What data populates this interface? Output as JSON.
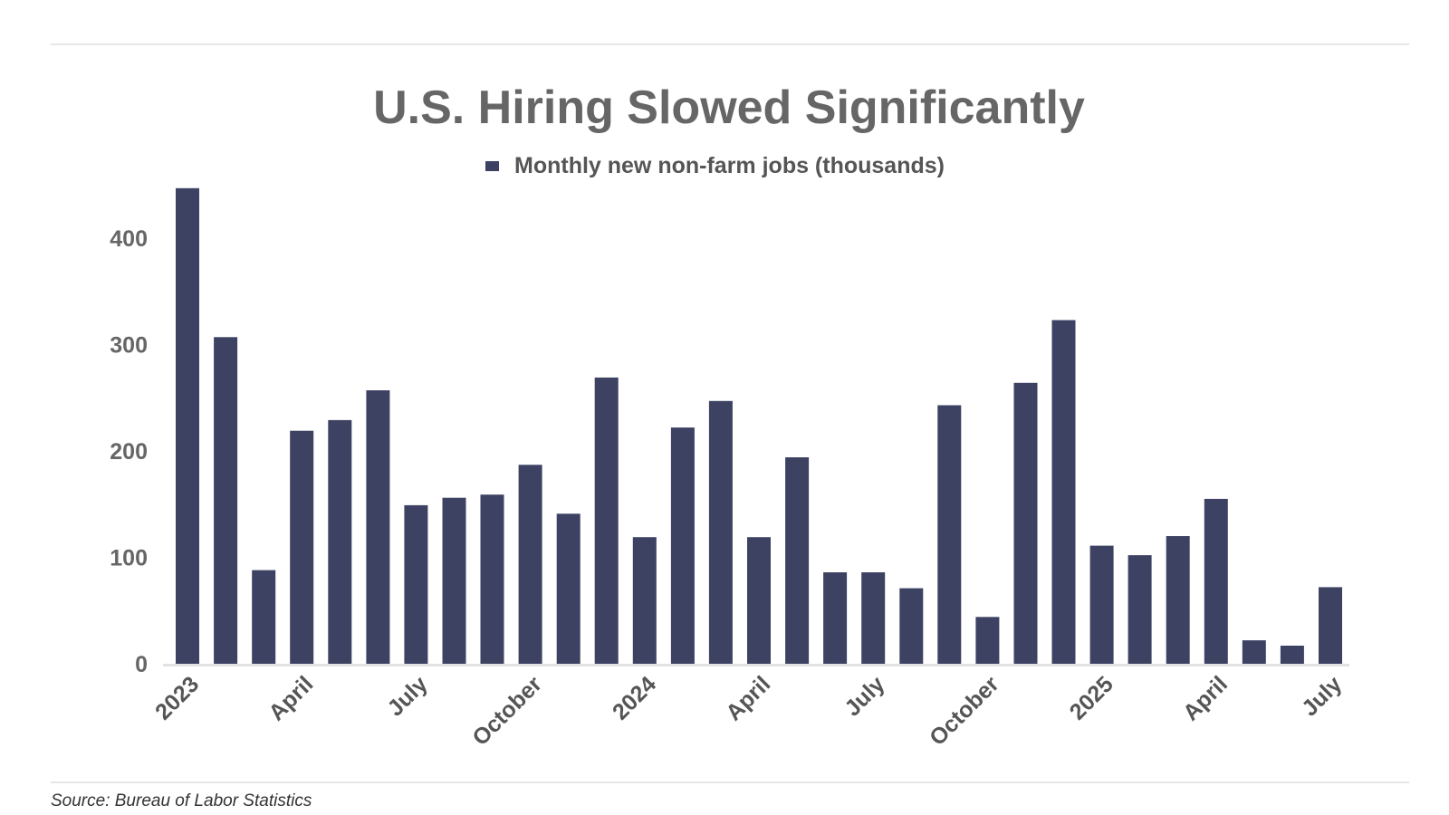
{
  "chart_data": {
    "type": "bar",
    "title": "U.S. Hiring Slowed Significantly",
    "xlabel": "",
    "ylabel": "",
    "ylim": [
      0,
      450
    ],
    "yticks": [
      0,
      100,
      200,
      300,
      400
    ],
    "grid": false,
    "legend": {
      "placement": "top-center"
    },
    "categories": [
      "2023-01",
      "2023-02",
      "2023-03",
      "2023-04",
      "2023-05",
      "2023-06",
      "2023-07",
      "2023-08",
      "2023-09",
      "2023-10",
      "2023-11",
      "2023-12",
      "2024-01",
      "2024-02",
      "2024-03",
      "2024-04",
      "2024-05",
      "2024-06",
      "2024-07",
      "2024-08",
      "2024-09",
      "2024-10",
      "2024-11",
      "2024-12",
      "2025-01",
      "2025-02",
      "2025-03",
      "2025-04",
      "2025-05",
      "2025-06",
      "2025-07"
    ],
    "xtick_labels": [
      {
        "index": 0,
        "label": "2023"
      },
      {
        "index": 3,
        "label": "April"
      },
      {
        "index": 6,
        "label": "July"
      },
      {
        "index": 9,
        "label": "October"
      },
      {
        "index": 12,
        "label": "2024"
      },
      {
        "index": 15,
        "label": "April"
      },
      {
        "index": 18,
        "label": "July"
      },
      {
        "index": 21,
        "label": "October"
      },
      {
        "index": 24,
        "label": "2025"
      },
      {
        "index": 27,
        "label": "April"
      },
      {
        "index": 30,
        "label": "July"
      }
    ],
    "series": [
      {
        "name": "Monthly new non-farm jobs (thousands)",
        "color": "#3d4263",
        "values": [
          447,
          307,
          88,
          219,
          229,
          257,
          149,
          156,
          159,
          187,
          141,
          269,
          119,
          222,
          247,
          119,
          194,
          86,
          86,
          71,
          243,
          44,
          264,
          323,
          111,
          102,
          120,
          155,
          22,
          17,
          72
        ]
      }
    ],
    "source": "Source: Bureau of Labor Statistics"
  },
  "colors": {
    "bar": "#3d4263",
    "rule": "#dddddd",
    "baseline": "#e2e2e2"
  }
}
